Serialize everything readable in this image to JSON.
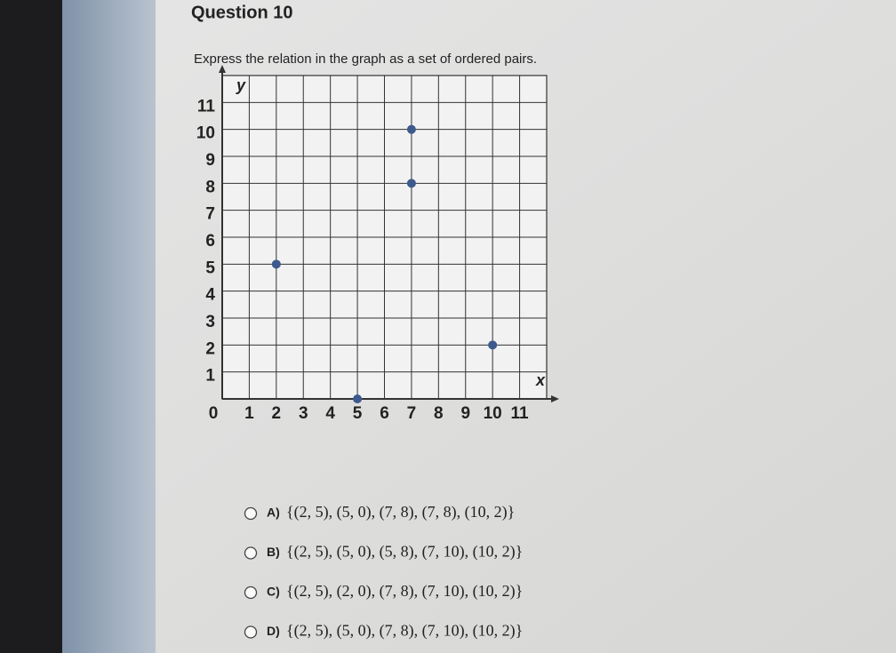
{
  "question": {
    "title": "Question 10",
    "prompt": "Express the relation in the graph as a set of ordered pairs."
  },
  "chart_data": {
    "type": "scatter",
    "x_label": "x",
    "y_label": "y",
    "x": [
      2,
      5,
      7,
      7,
      10
    ],
    "series": [
      {
        "color": "#3d5a8c",
        "values": [
          5,
          0,
          8,
          10,
          2
        ]
      }
    ],
    "xlim": [
      0,
      12
    ],
    "ylim": [
      0,
      12
    ],
    "xticks": [
      0,
      1,
      2,
      3,
      4,
      5,
      6,
      7,
      8,
      9,
      10,
      11
    ],
    "yticks": [
      1,
      2,
      3,
      4,
      5,
      6,
      7,
      8,
      9,
      10,
      11
    ],
    "grid": true
  },
  "options": [
    {
      "letter": "A)",
      "text": "{(2, 5), (5, 0), (7, 8), (7, 8), (10, 2)}"
    },
    {
      "letter": "B)",
      "text": "{(2, 5), (5, 0), (5, 8), (7, 10), (10, 2)}"
    },
    {
      "letter": "C)",
      "text": "{(2, 5), (2, 0), (7, 8), (7, 10), (10, 2)}"
    },
    {
      "letter": "D)",
      "text": "{(2, 5), (5, 0), (7, 8), (7, 10), (10, 2)}"
    }
  ]
}
